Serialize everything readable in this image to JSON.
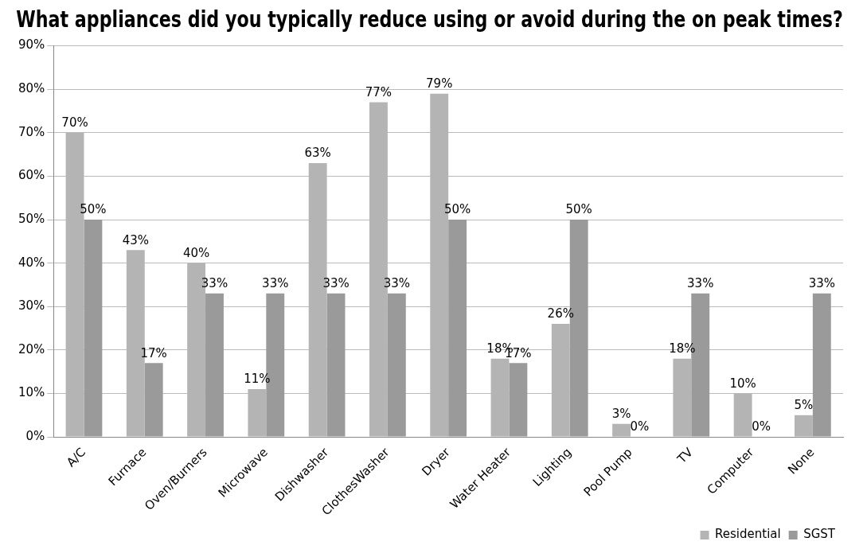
{
  "chart_data": {
    "type": "bar",
    "title": "What appliances did you typically reduce using or avoid during the on peak times?",
    "categories": [
      "A/C",
      "Furnace",
      "Oven/Burners",
      "Microwave",
      "Dishwasher",
      "ClothesWasher",
      "Dryer",
      "Water Heater",
      "Lighting",
      "Pool Pump",
      "TV",
      "Computer",
      "None"
    ],
    "series": [
      {
        "name": "Residential",
        "color": "#b4b4b4",
        "values": [
          70,
          43,
          40,
          11,
          63,
          77,
          79,
          18,
          26,
          3,
          18,
          10,
          5
        ],
        "value_labels": [
          "70%",
          "43%",
          "40%",
          "11%",
          "63%",
          "77%",
          "79%",
          "18%",
          "26%",
          "3%",
          "18%",
          "10%",
          "5%"
        ]
      },
      {
        "name": "SGST",
        "color": "#9a9a9a",
        "values": [
          50,
          17,
          33,
          33,
          33,
          33,
          50,
          17,
          50,
          0,
          33,
          0,
          33
        ],
        "value_labels": [
          "50%",
          "17%",
          "33%",
          "33%",
          "33%",
          "33%",
          "50%",
          "17%",
          "50%",
          "0%",
          "33%",
          "0%",
          "33%"
        ]
      }
    ],
    "ylim": [
      0,
      90
    ],
    "yticks": [
      {
        "value": 0,
        "label": "0%"
      },
      {
        "value": 10,
        "label": "10%"
      },
      {
        "value": 20,
        "label": "20%"
      },
      {
        "value": 30,
        "label": "30%"
      },
      {
        "value": 40,
        "label": "40%"
      },
      {
        "value": 50,
        "label": "50%"
      },
      {
        "value": 60,
        "label": "60%"
      },
      {
        "value": 70,
        "label": "70%"
      },
      {
        "value": 80,
        "label": "80%"
      },
      {
        "value": 90,
        "label": "90%"
      }
    ],
    "grid": "y",
    "legend": "bottom right"
  }
}
